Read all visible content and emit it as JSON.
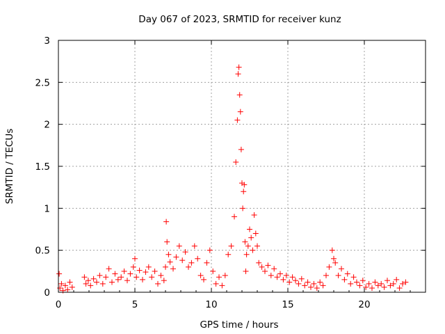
{
  "chart_data": {
    "type": "scatter",
    "title": "Day 067 of 2023, SRMTID for receiver kunz",
    "xlabel": "GPS time / hours",
    "ylabel": "SRMTID / TECUs",
    "xlim": [
      0,
      24
    ],
    "ylim": [
      0,
      3
    ],
    "xticks": [
      0,
      5,
      10,
      15,
      20
    ],
    "yticks": [
      0,
      0.5,
      1,
      1.5,
      2,
      2.5,
      3
    ],
    "xtick_labels": [
      "0",
      "5",
      "10",
      "15",
      "20"
    ],
    "ytick_labels": [
      "0",
      "0.5",
      "1",
      "1.5",
      "2",
      "2.5",
      "3"
    ],
    "grid": true,
    "marker": "+",
    "color": "#ff0000",
    "series": [
      {
        "name": "SRMTID",
        "x": [
          0.05,
          0.1,
          0.2,
          0.3,
          0.45,
          0.6,
          0.75,
          0.9,
          1.7,
          1.8,
          1.95,
          2.1,
          2.3,
          2.5,
          2.7,
          2.9,
          3.1,
          3.3,
          3.5,
          3.7,
          3.9,
          4.1,
          4.3,
          4.5,
          4.7,
          4.9,
          5.0,
          5.1,
          5.3,
          5.5,
          5.7,
          5.9,
          6.1,
          6.3,
          6.5,
          6.7,
          6.9,
          7.0,
          7.05,
          7.1,
          7.2,
          7.3,
          7.5,
          7.7,
          7.9,
          8.1,
          8.3,
          8.5,
          8.7,
          8.9,
          9.1,
          9.3,
          9.5,
          9.7,
          9.9,
          10.1,
          10.3,
          10.5,
          10.7,
          10.9,
          11.1,
          11.3,
          11.5,
          11.6,
          11.7,
          11.75,
          11.8,
          11.85,
          11.9,
          11.95,
          12.0,
          12.05,
          12.1,
          12.15,
          12.2,
          12.25,
          12.3,
          12.4,
          12.5,
          12.6,
          12.7,
          12.8,
          12.9,
          13.0,
          13.1,
          13.3,
          13.5,
          13.7,
          13.9,
          14.1,
          14.3,
          14.5,
          14.7,
          14.9,
          15.1,
          15.3,
          15.5,
          15.7,
          15.9,
          16.1,
          16.3,
          16.5,
          16.7,
          16.9,
          17.1,
          17.3,
          17.5,
          17.7,
          17.9,
          18.0,
          18.1,
          18.3,
          18.5,
          18.7,
          18.9,
          19.1,
          19.3,
          19.5,
          19.7,
          19.9,
          20.1,
          20.3,
          20.5,
          20.7,
          20.9,
          21.1,
          21.3,
          21.5,
          21.7,
          21.9,
          22.1,
          22.3,
          22.5,
          22.7
        ],
        "y": [
          0.22,
          0.05,
          0.1,
          0.02,
          0.08,
          0.03,
          0.12,
          0.06,
          0.18,
          0.1,
          0.14,
          0.08,
          0.16,
          0.12,
          0.2,
          0.1,
          0.18,
          0.28,
          0.12,
          0.22,
          0.15,
          0.18,
          0.25,
          0.14,
          0.22,
          0.3,
          0.4,
          0.18,
          0.26,
          0.15,
          0.24,
          0.3,
          0.18,
          0.25,
          0.1,
          0.2,
          0.14,
          0.3,
          0.84,
          0.6,
          0.45,
          0.36,
          0.28,
          0.42,
          0.55,
          0.38,
          0.48,
          0.3,
          0.35,
          0.55,
          0.4,
          0.2,
          0.15,
          0.35,
          0.5,
          0.25,
          0.1,
          0.18,
          0.08,
          0.2,
          0.45,
          0.55,
          0.9,
          1.55,
          2.05,
          2.6,
          2.68,
          2.35,
          2.15,
          1.7,
          1.3,
          1.0,
          1.2,
          1.28,
          0.6,
          0.25,
          0.45,
          0.55,
          0.75,
          0.65,
          0.5,
          0.92,
          0.7,
          0.55,
          0.35,
          0.3,
          0.25,
          0.32,
          0.2,
          0.28,
          0.18,
          0.22,
          0.15,
          0.2,
          0.12,
          0.18,
          0.14,
          0.1,
          0.16,
          0.08,
          0.12,
          0.06,
          0.1,
          0.05,
          0.12,
          0.08,
          0.2,
          0.3,
          0.5,
          0.4,
          0.35,
          0.2,
          0.28,
          0.15,
          0.22,
          0.1,
          0.18,
          0.12,
          0.08,
          0.14,
          0.06,
          0.1,
          0.05,
          0.12,
          0.08,
          0.1,
          0.06,
          0.14,
          0.08,
          0.1,
          0.15,
          0.05,
          0.1,
          0.12
        ]
      }
    ]
  }
}
